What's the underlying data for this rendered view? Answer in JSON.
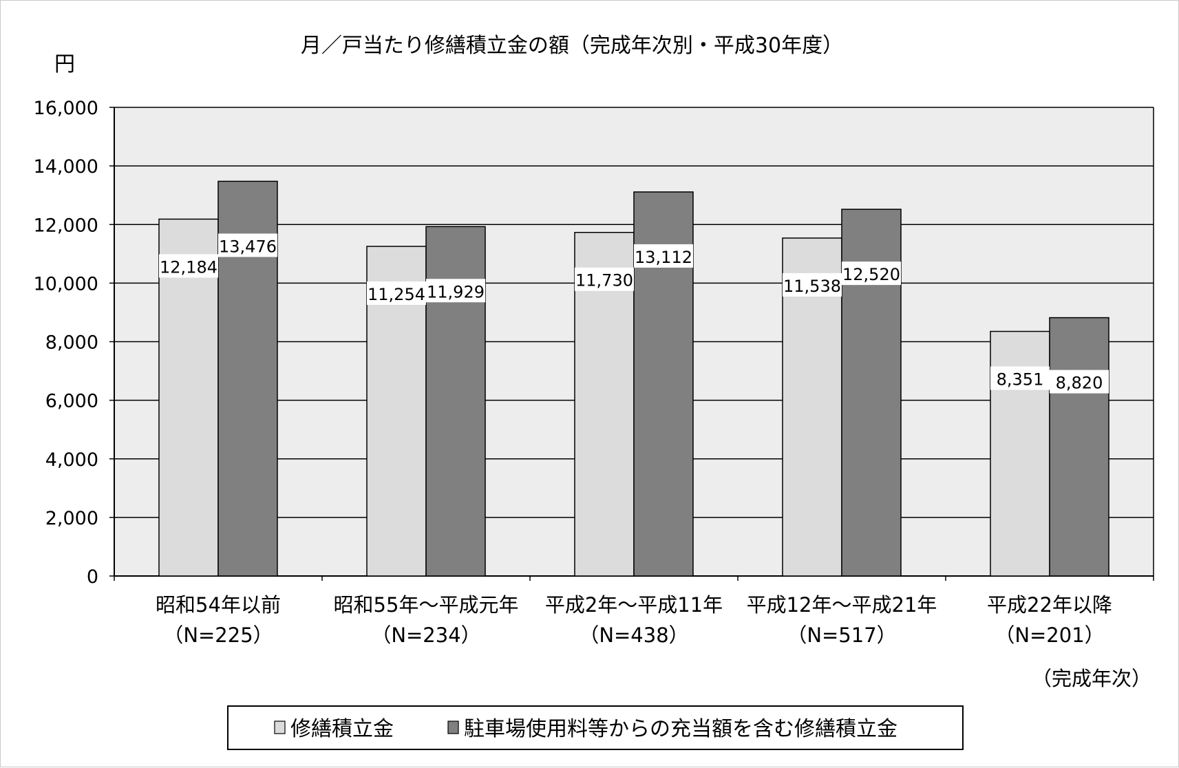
{
  "chart_data": {
    "type": "bar",
    "title": "月／戸当たり修繕積立金の額（完成年次別・平成30年度）",
    "ylabel": "円",
    "xlabel": "（完成年次）",
    "ylim": [
      0,
      16000
    ],
    "ytick_step": 2000,
    "yticks": [
      "0",
      "2,000",
      "4,000",
      "6,000",
      "8,000",
      "10,000",
      "12,000",
      "14,000",
      "16,000"
    ],
    "grid": true,
    "legend_position": "bottom",
    "categories": [
      {
        "name": "昭和54年以前",
        "n": "（N=225）"
      },
      {
        "name": "昭和55年～平成元年",
        "n": "（N=234）"
      },
      {
        "name": "平成2年～平成11年",
        "n": "（N=438）"
      },
      {
        "name": "平成12年～平成21年",
        "n": "（N=517）"
      },
      {
        "name": "平成22年以降",
        "n": "（N=201）"
      }
    ],
    "series": [
      {
        "name": "修繕積立金",
        "color": "#dcdcdc",
        "values": [
          12184,
          11254,
          11730,
          11538,
          8351
        ],
        "labels": [
          "12,184",
          "11,254",
          "11,730",
          "11,538",
          "8,351"
        ]
      },
      {
        "name": "駐車場使用料等からの充当額を含む修繕積立金",
        "color": "#808080",
        "values": [
          13476,
          11929,
          13112,
          12520,
          8820
        ],
        "labels": [
          "13,476",
          "11,929",
          "13,112",
          "12,520",
          "8,820"
        ]
      }
    ]
  }
}
